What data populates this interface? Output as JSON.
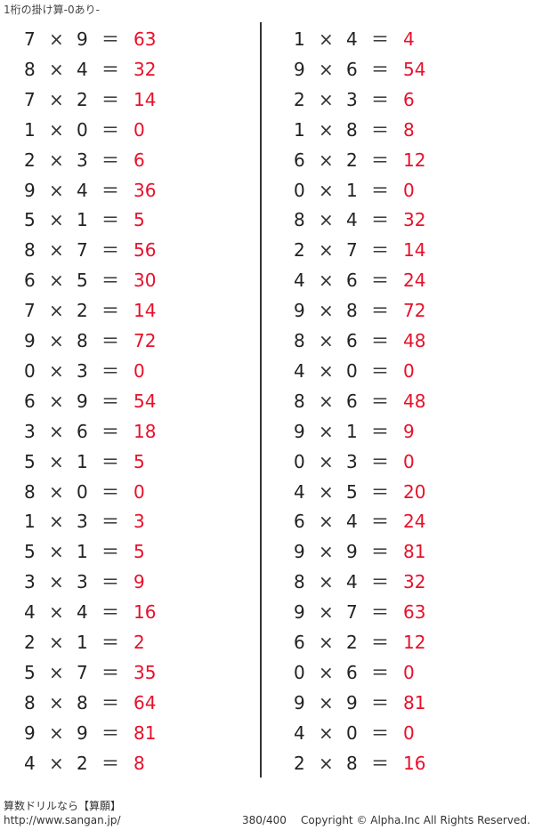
{
  "title": "1桁の掛け算-0あり-",
  "operator": "×",
  "equals": "＝",
  "colors": {
    "answer": "#e8102a",
    "text": "#222222"
  },
  "left": [
    [
      "7",
      "9",
      "63"
    ],
    [
      "8",
      "4",
      "32"
    ],
    [
      "7",
      "2",
      "14"
    ],
    [
      "1",
      "0",
      "0"
    ],
    [
      "2",
      "3",
      "6"
    ],
    [
      "9",
      "4",
      "36"
    ],
    [
      "5",
      "1",
      "5"
    ],
    [
      "8",
      "7",
      "56"
    ],
    [
      "6",
      "5",
      "30"
    ],
    [
      "7",
      "2",
      "14"
    ],
    [
      "9",
      "8",
      "72"
    ],
    [
      "0",
      "3",
      "0"
    ],
    [
      "6",
      "9",
      "54"
    ],
    [
      "3",
      "6",
      "18"
    ],
    [
      "5",
      "1",
      "5"
    ],
    [
      "8",
      "0",
      "0"
    ],
    [
      "1",
      "3",
      "3"
    ],
    [
      "5",
      "1",
      "5"
    ],
    [
      "3",
      "3",
      "9"
    ],
    [
      "4",
      "4",
      "16"
    ],
    [
      "2",
      "1",
      "2"
    ],
    [
      "5",
      "7",
      "35"
    ],
    [
      "8",
      "8",
      "64"
    ],
    [
      "9",
      "9",
      "81"
    ],
    [
      "4",
      "2",
      "8"
    ]
  ],
  "right": [
    [
      "1",
      "4",
      "4"
    ],
    [
      "9",
      "6",
      "54"
    ],
    [
      "2",
      "3",
      "6"
    ],
    [
      "1",
      "8",
      "8"
    ],
    [
      "6",
      "2",
      "12"
    ],
    [
      "0",
      "1",
      "0"
    ],
    [
      "8",
      "4",
      "32"
    ],
    [
      "2",
      "7",
      "14"
    ],
    [
      "4",
      "6",
      "24"
    ],
    [
      "9",
      "8",
      "72"
    ],
    [
      "8",
      "6",
      "48"
    ],
    [
      "4",
      "0",
      "0"
    ],
    [
      "8",
      "6",
      "48"
    ],
    [
      "9",
      "1",
      "9"
    ],
    [
      "0",
      "3",
      "0"
    ],
    [
      "4",
      "5",
      "20"
    ],
    [
      "6",
      "4",
      "24"
    ],
    [
      "9",
      "9",
      "81"
    ],
    [
      "8",
      "4",
      "32"
    ],
    [
      "9",
      "7",
      "63"
    ],
    [
      "6",
      "2",
      "12"
    ],
    [
      "0",
      "6",
      "0"
    ],
    [
      "9",
      "9",
      "81"
    ],
    [
      "4",
      "0",
      "0"
    ],
    [
      "2",
      "8",
      "16"
    ]
  ],
  "footer": {
    "brand": "算数ドリルなら【算願】",
    "url": "http://www.sangan.jp/",
    "page": "380/400",
    "copyright": "Copyright © Alpha.Inc All Rights Reserved."
  }
}
